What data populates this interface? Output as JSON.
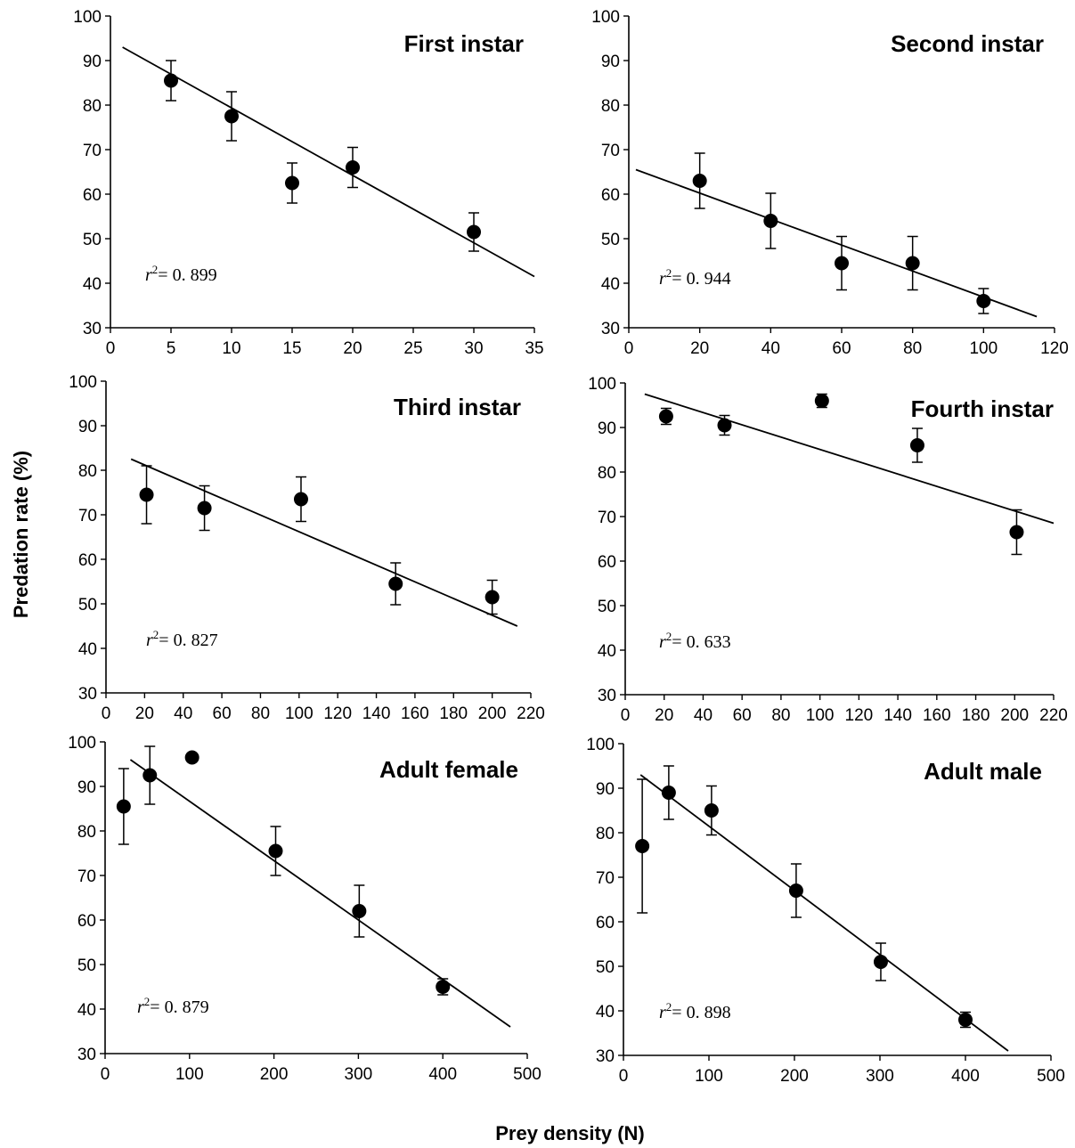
{
  "figure": {
    "ylabel": "Predation rate (%)",
    "xlabel": "Prey density (N)"
  },
  "chart_data": [
    {
      "type": "scatter",
      "title": "First instar",
      "annotation": {
        "r_symbol": "r",
        "exponent": "2",
        "text": "= 0. 899"
      },
      "xlim": [
        0,
        35
      ],
      "ylim": [
        30,
        100
      ],
      "xticks": [
        "0",
        "5",
        "10",
        "15",
        "20",
        "25",
        "30",
        "35"
      ],
      "yticks": [
        "30",
        "40",
        "50",
        "60",
        "70",
        "80",
        "90",
        "100"
      ],
      "x": [
        5,
        10,
        15,
        20,
        30
      ],
      "y": [
        85.5,
        77.5,
        62.5,
        66,
        51.5
      ],
      "error": [
        4.5,
        5.5,
        4.5,
        4.5,
        4.3
      ],
      "trendline": {
        "x": [
          1,
          35
        ],
        "y": [
          93,
          41.5
        ]
      }
    },
    {
      "type": "scatter",
      "title": "Second instar",
      "annotation": {
        "r_symbol": "r",
        "exponent": "2",
        "text": "= 0. 944"
      },
      "xlim": [
        0,
        120
      ],
      "ylim": [
        30,
        100
      ],
      "xticks": [
        "0",
        "20",
        "40",
        "60",
        "80",
        "100",
        "120"
      ],
      "yticks": [
        "30",
        "40",
        "50",
        "60",
        "70",
        "80",
        "90",
        "100"
      ],
      "x": [
        20,
        40,
        60,
        80,
        100
      ],
      "y": [
        63,
        54,
        44.5,
        44.5,
        36
      ],
      "error": [
        6.2,
        6.2,
        6,
        6,
        2.8
      ],
      "trendline": {
        "x": [
          2,
          115
        ],
        "y": [
          65.5,
          32.5
        ]
      }
    },
    {
      "type": "scatter",
      "title": "Third instar",
      "annotation": {
        "r_symbol": "r",
        "exponent": "2",
        "text": "= 0. 827"
      },
      "xlim": [
        0,
        220
      ],
      "ylim": [
        30,
        100
      ],
      "xticks": [
        "0",
        "20",
        "40",
        "60",
        "80",
        "100",
        "120",
        "140",
        "160",
        "180",
        "200",
        "220"
      ],
      "yticks": [
        "30",
        "40",
        "50",
        "60",
        "70",
        "80",
        "90",
        "100"
      ],
      "x": [
        21,
        51,
        101,
        150,
        200
      ],
      "y": [
        74.5,
        71.5,
        73.5,
        54.5,
        51.5
      ],
      "error": [
        6.5,
        5,
        5,
        4.7,
        3.8
      ],
      "trendline": {
        "x": [
          13,
          213
        ],
        "y": [
          82.5,
          45
        ]
      }
    },
    {
      "type": "scatter",
      "title": "Fourth instar",
      "annotation": {
        "r_symbol": "r",
        "exponent": "2",
        "text": "= 0. 633"
      },
      "xlim": [
        0,
        220
      ],
      "ylim": [
        30,
        100
      ],
      "xticks": [
        "0",
        "20",
        "40",
        "60",
        "80",
        "100",
        "120",
        "140",
        "160",
        "180",
        "200",
        "220"
      ],
      "yticks": [
        "30",
        "40",
        "50",
        "60",
        "70",
        "80",
        "90",
        "100"
      ],
      "x": [
        21,
        51,
        101,
        150,
        201
      ],
      "y": [
        92.5,
        90.5,
        96,
        86,
        66.5
      ],
      "error": [
        1.8,
        2.2,
        1.5,
        3.8,
        5
      ],
      "trendline": {
        "x": [
          10,
          220
        ],
        "y": [
          97.5,
          68.5
        ]
      }
    },
    {
      "type": "scatter",
      "title": "Adult female",
      "annotation": {
        "r_symbol": "r",
        "exponent": "2",
        "text": "= 0. 879"
      },
      "xlim": [
        0,
        500
      ],
      "ylim": [
        30,
        100
      ],
      "xticks": [
        "0",
        "100",
        "200",
        "300",
        "400",
        "500"
      ],
      "yticks": [
        "30",
        "40",
        "50",
        "60",
        "70",
        "80",
        "90",
        "100"
      ],
      "x": [
        22,
        53,
        103,
        202,
        301,
        400
      ],
      "y": [
        85.5,
        92.5,
        96.5,
        75.5,
        62,
        45
      ],
      "error": [
        8.5,
        6.5,
        0,
        5.5,
        5.8,
        1.8
      ],
      "trendline": {
        "x": [
          30,
          480
        ],
        "y": [
          96,
          36
        ]
      }
    },
    {
      "type": "scatter",
      "title": "Adult male",
      "annotation": {
        "r_symbol": "r",
        "exponent": "2",
        "text": "= 0. 898"
      },
      "xlim": [
        0,
        500
      ],
      "ylim": [
        30,
        100
      ],
      "xticks": [
        "0",
        "100",
        "200",
        "300",
        "400",
        "500"
      ],
      "yticks": [
        "30",
        "40",
        "50",
        "60",
        "70",
        "80",
        "90",
        "100"
      ],
      "x": [
        22,
        53,
        103,
        202,
        301,
        400
      ],
      "y": [
        77,
        89,
        85,
        67,
        51,
        38
      ],
      "error": [
        15,
        6,
        5.5,
        6,
        4.2,
        1.7
      ],
      "trendline": {
        "x": [
          20,
          450
        ],
        "y": [
          93,
          31
        ]
      }
    }
  ]
}
